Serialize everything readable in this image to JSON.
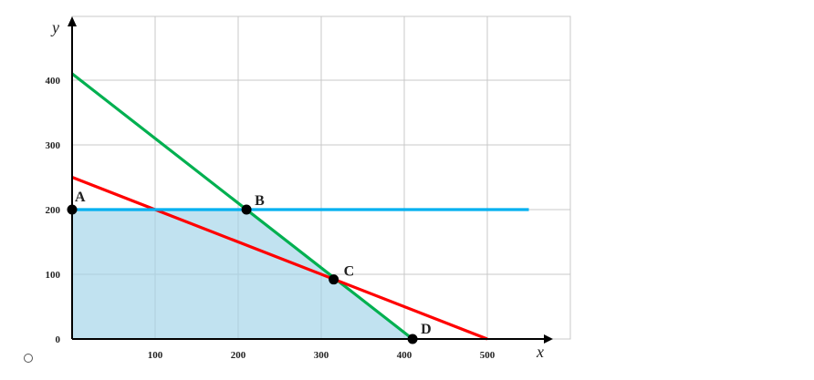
{
  "option": {
    "selected": false
  },
  "chart_data": {
    "type": "line",
    "xlabel": "x",
    "ylabel": "y",
    "xlim": [
      0,
      600
    ],
    "ylim": [
      0,
      500
    ],
    "x_ticks": [
      100,
      200,
      300,
      400,
      500
    ],
    "y_ticks": [
      0,
      100,
      200,
      300,
      400
    ],
    "grid": true,
    "series": [
      {
        "color": "#00b050",
        "points": [
          [
            0,
            410
          ],
          [
            410,
            0
          ]
        ]
      },
      {
        "color": "#ff0000",
        "points": [
          [
            0,
            250
          ],
          [
            500,
            0
          ]
        ]
      },
      {
        "color": "#00b0f0",
        "points": [
          [
            0,
            200
          ],
          [
            550,
            200
          ]
        ]
      }
    ],
    "feasible_region": {
      "color": "#9fd3e8",
      "points": [
        [
          0,
          0
        ],
        [
          0,
          200
        ],
        [
          210,
          200
        ],
        [
          320,
          90
        ],
        [
          410,
          0
        ]
      ]
    },
    "points": [
      {
        "label": "A",
        "x": 0,
        "y": 200
      },
      {
        "label": "B",
        "x": 210,
        "y": 200
      },
      {
        "label": "C",
        "x": 315,
        "y": 92
      },
      {
        "label": "D",
        "x": 410,
        "y": 0
      }
    ],
    "colors": {
      "grid": "#c8c8c8",
      "axis": "#000000",
      "point": "#000000",
      "frame": "#c8c8c8"
    }
  }
}
